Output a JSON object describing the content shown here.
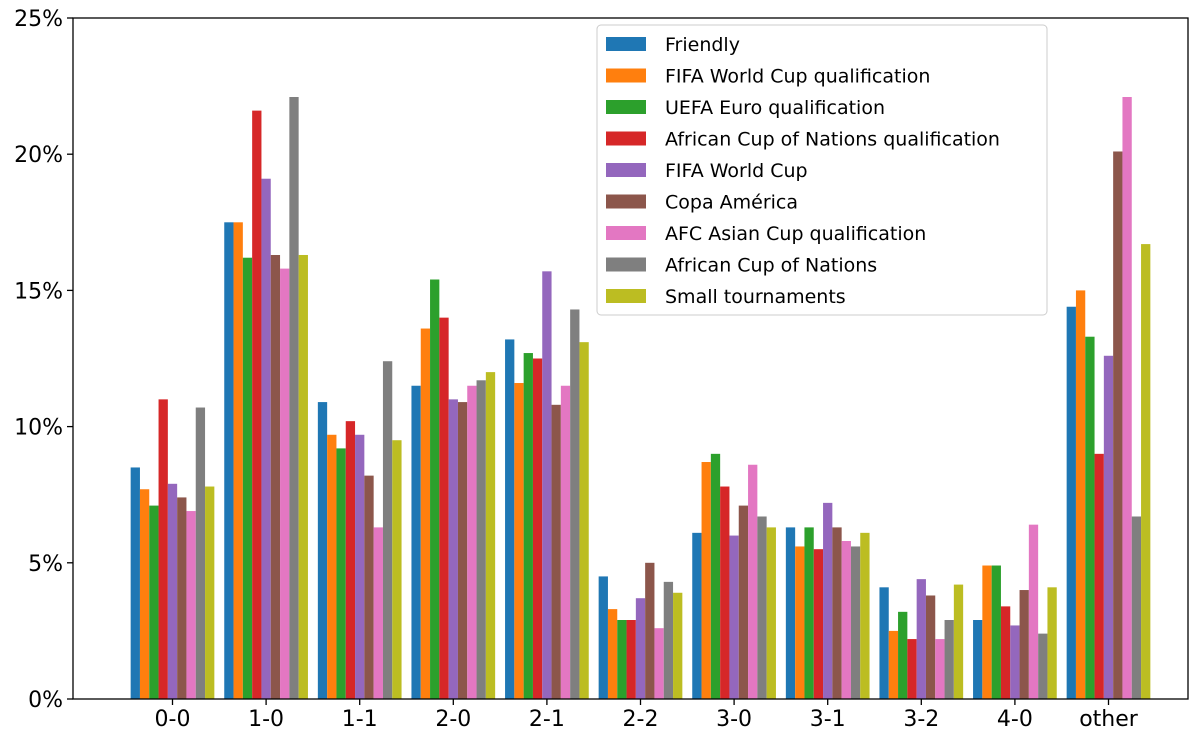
{
  "chart_data": {
    "type": "bar",
    "title": "",
    "xlabel": "",
    "ylabel": "",
    "ylim": [
      0,
      25
    ],
    "yticks": [
      0,
      5,
      10,
      15,
      20,
      25
    ],
    "ytick_labels": [
      "0%",
      "5%",
      "10%",
      "15%",
      "20%",
      "25%"
    ],
    "categories": [
      "0-0",
      "1-0",
      "1-1",
      "2-0",
      "2-1",
      "2-2",
      "3-0",
      "3-1",
      "3-2",
      "4-0",
      "other"
    ],
    "legend_position": "top-right",
    "grid": false,
    "series": [
      {
        "name": "Friendly",
        "color": "#1f77b4",
        "values": [
          8.5,
          17.5,
          10.9,
          11.5,
          13.2,
          4.5,
          6.1,
          6.3,
          4.1,
          2.9,
          14.4
        ]
      },
      {
        "name": "FIFA World Cup qualification",
        "color": "#ff7f0e",
        "values": [
          7.7,
          17.5,
          9.7,
          13.6,
          11.6,
          3.3,
          8.7,
          5.6,
          2.5,
          4.9,
          15.0
        ]
      },
      {
        "name": "UEFA Euro qualification",
        "color": "#2ca02c",
        "values": [
          7.1,
          16.2,
          9.2,
          15.4,
          12.7,
          2.9,
          9.0,
          6.3,
          3.2,
          4.9,
          13.3
        ]
      },
      {
        "name": "African Cup of Nations qualification",
        "color": "#d62728",
        "values": [
          11.0,
          21.6,
          10.2,
          14.0,
          12.5,
          2.9,
          7.8,
          5.5,
          2.2,
          3.4,
          9.0
        ]
      },
      {
        "name": "FIFA World Cup",
        "color": "#9467bd",
        "values": [
          7.9,
          19.1,
          9.7,
          11.0,
          15.7,
          3.7,
          6.0,
          7.2,
          4.4,
          2.7,
          12.6
        ]
      },
      {
        "name": "Copa América",
        "color": "#8c564b",
        "values": [
          7.4,
          16.3,
          8.2,
          10.9,
          10.8,
          5.0,
          7.1,
          6.3,
          3.8,
          4.0,
          20.1
        ]
      },
      {
        "name": "AFC Asian Cup qualification",
        "color": "#e377c2",
        "values": [
          6.9,
          15.8,
          6.3,
          11.5,
          11.5,
          2.6,
          8.6,
          5.8,
          2.2,
          6.4,
          22.1
        ]
      },
      {
        "name": "African Cup of Nations",
        "color": "#7f7f7f",
        "values": [
          10.7,
          22.1,
          12.4,
          11.7,
          14.3,
          4.3,
          6.7,
          5.6,
          2.9,
          2.4,
          6.7
        ]
      },
      {
        "name": "Small tournaments",
        "color": "#bcbd22",
        "values": [
          7.8,
          16.3,
          9.5,
          12.0,
          13.1,
          3.9,
          6.3,
          6.1,
          4.2,
          4.1,
          16.7
        ]
      }
    ]
  }
}
